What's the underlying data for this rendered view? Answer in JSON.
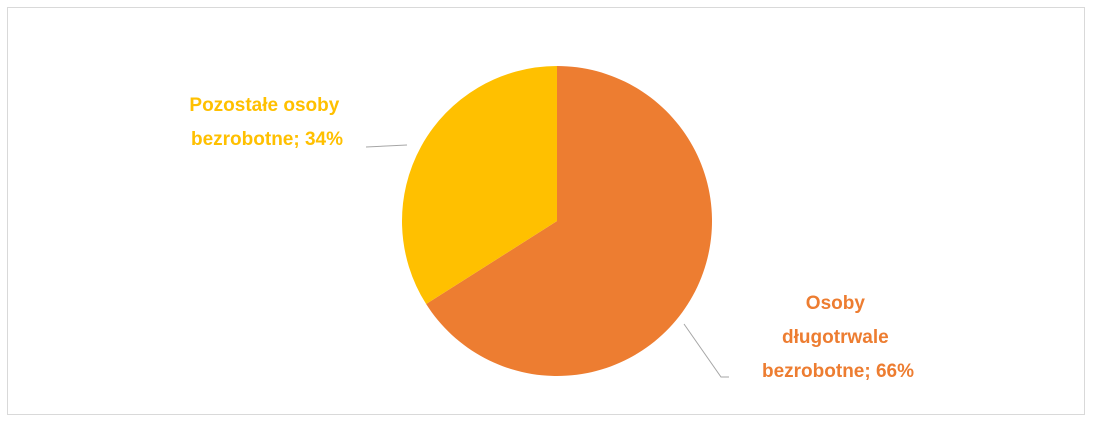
{
  "chart_data": {
    "type": "pie",
    "title": "",
    "slices": [
      {
        "label_lines": [
          "Osoby",
          "długotrwale",
          "bezrobotne; 66%"
        ],
        "category": "Osoby długotrwale bezrobotne",
        "value": 66,
        "color": "#ED7D31"
      },
      {
        "label_lines": [
          "Pozostałe osoby",
          "bezrobotne; 34%"
        ],
        "category": "Pozostałe osoby bezrobotne",
        "value": 34,
        "color": "#FFC000"
      }
    ],
    "leader_line_color": "#A6A6A6",
    "legend": "none",
    "data_labels": "category; percentage"
  }
}
